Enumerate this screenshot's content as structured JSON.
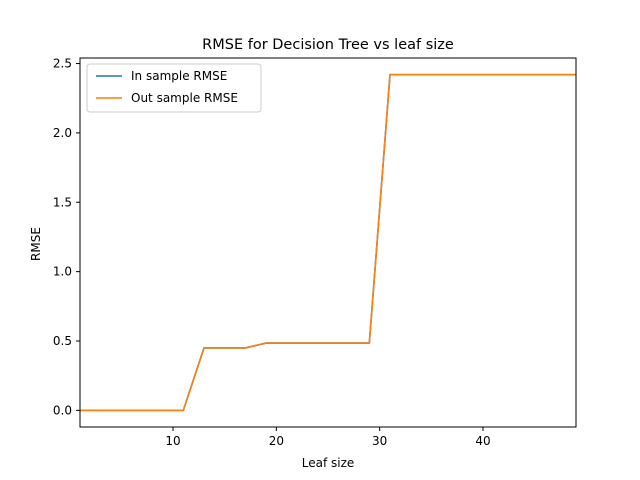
{
  "chart_data": {
    "type": "line",
    "title": "RMSE for Decision Tree vs leaf size",
    "xlabel": "Leaf size",
    "ylabel": "RMSE",
    "xlim": [
      1,
      49
    ],
    "ylim": [
      -0.12,
      2.54
    ],
    "xticks": [
      10,
      20,
      30,
      40
    ],
    "yticks": [
      0.0,
      0.5,
      1.0,
      1.5,
      2.0,
      2.5
    ],
    "xtick_labels": [
      "10",
      "20",
      "30",
      "40"
    ],
    "ytick_labels": [
      "0.0",
      "0.5",
      "1.0",
      "1.5",
      "2.0",
      "2.5"
    ],
    "grid": false,
    "legend_position": "top-left",
    "x": [
      1,
      3,
      5,
      7,
      9,
      11,
      13,
      15,
      17,
      19,
      21,
      23,
      25,
      27,
      29,
      31,
      33,
      35,
      37,
      39,
      41,
      43,
      45,
      47,
      49
    ],
    "series": [
      {
        "name": "In sample RMSE",
        "color": "#1f77b4",
        "values": [
          0.0,
          0.0,
          0.0,
          0.0,
          0.0,
          0.0,
          0.45,
          0.45,
          0.45,
          0.485,
          0.485,
          0.485,
          0.485,
          0.485,
          0.485,
          2.42,
          2.42,
          2.42,
          2.42,
          2.42,
          2.42,
          2.42,
          2.42,
          2.42,
          2.42
        ]
      },
      {
        "name": "Out sample RMSE",
        "color": "#ff7f0e",
        "values": [
          0.0,
          0.0,
          0.0,
          0.0,
          0.0,
          0.0,
          0.45,
          0.45,
          0.45,
          0.485,
          0.485,
          0.485,
          0.485,
          0.485,
          0.485,
          2.42,
          2.42,
          2.42,
          2.42,
          2.42,
          2.42,
          2.42,
          2.42,
          2.42,
          2.42
        ]
      }
    ]
  }
}
